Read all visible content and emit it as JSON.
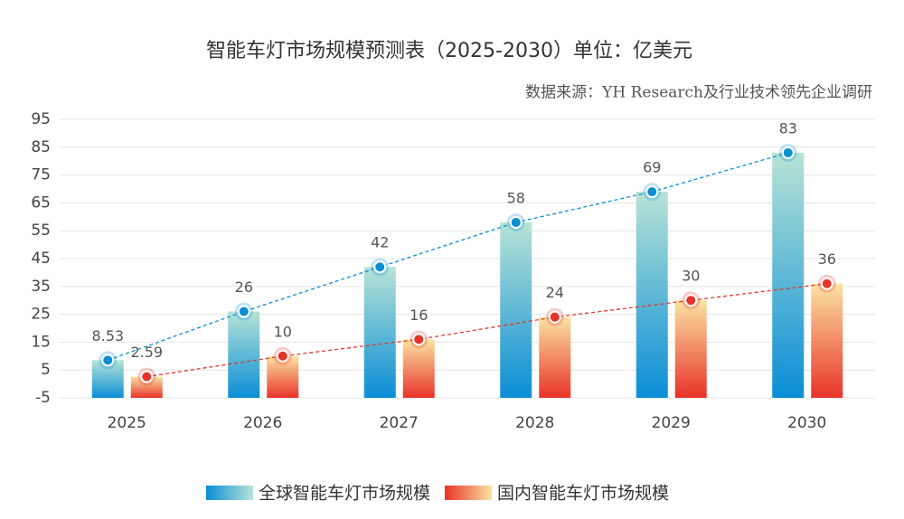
{
  "chart_data": {
    "type": "bar",
    "title": "智能车灯市场规模预测表（2025-2030）单位：亿美元",
    "subtitle": "数据来源：YH Research及行业技术领先企业调研",
    "categories": [
      "2025",
      "2026",
      "2027",
      "2028",
      "2029",
      "2030"
    ],
    "series": [
      {
        "name": "全球智能车灯市场规模",
        "color": "#0a8ed6",
        "values": [
          8.53,
          26,
          42,
          58,
          69,
          83
        ]
      },
      {
        "name": "国内智能车灯市场规模",
        "color": "#e8332a",
        "values": [
          2.59,
          10,
          16,
          24,
          30,
          36
        ]
      }
    ],
    "ylim": [
      -5,
      95
    ],
    "yticks": [
      -5,
      5,
      15,
      25,
      35,
      45,
      55,
      65,
      75,
      85,
      95
    ],
    "grid": true,
    "legend": "bottom"
  }
}
